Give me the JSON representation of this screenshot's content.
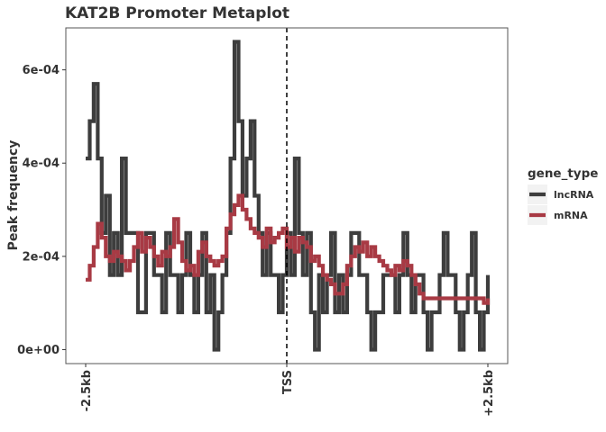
{
  "chart_data": {
    "type": "line",
    "step": true,
    "title": "KAT2B Promoter Metaplot",
    "xlabel": "",
    "ylabel": "Peak frequency",
    "xlim": [
      -2500,
      2500
    ],
    "x_ticks": [
      {
        "value": -2500,
        "label": "-2.5kb"
      },
      {
        "value": 0,
        "label": "TSS"
      },
      {
        "value": 2500,
        "label": "+2.5kb"
      }
    ],
    "ylim": [
      -3e-05,
      0.00069
    ],
    "y_ticks": [
      {
        "value": 0,
        "label": "0e+00"
      },
      {
        "value": 0.0002,
        "label": "2e-04"
      },
      {
        "value": 0.0004,
        "label": "4e-04"
      },
      {
        "value": 0.0006,
        "label": "6e-04"
      }
    ],
    "grid": false,
    "vline": {
      "x": 0,
      "style": "dashed"
    },
    "legend": {
      "title": "gene_type",
      "position": "right"
    },
    "series": [
      {
        "name": "lncRNA",
        "color": "#3d3d3d",
        "x": [
          -2500,
          -2450,
          -2400,
          -2350,
          -2300,
          -2250,
          -2200,
          -2150,
          -2100,
          -2050,
          -2000,
          -1950,
          -1900,
          -1850,
          -1800,
          -1750,
          -1700,
          -1650,
          -1600,
          -1550,
          -1500,
          -1450,
          -1400,
          -1350,
          -1300,
          -1250,
          -1200,
          -1150,
          -1100,
          -1050,
          -1000,
          -950,
          -900,
          -850,
          -800,
          -750,
          -700,
          -650,
          -600,
          -550,
          -500,
          -450,
          -400,
          -350,
          -300,
          -250,
          -200,
          -150,
          -100,
          -50,
          0,
          50,
          100,
          150,
          200,
          250,
          300,
          350,
          400,
          450,
          500,
          550,
          600,
          650,
          700,
          750,
          800,
          850,
          900,
          950,
          1000,
          1050,
          1100,
          1150,
          1200,
          1250,
          1300,
          1350,
          1400,
          1450,
          1500,
          1550,
          1600,
          1650,
          1700,
          1750,
          1800,
          1850,
          1900,
          1950,
          2000,
          2050,
          2100,
          2150,
          2200,
          2250,
          2300,
          2350,
          2400,
          2450,
          2500
        ],
        "values": [
          0.00041,
          0.00049,
          0.00057,
          0.00041,
          0.00025,
          0.00033,
          0.00016,
          0.00025,
          0.00016,
          0.00041,
          0.00025,
          0.00025,
          0.00025,
          8e-05,
          8e-05,
          0.00025,
          0.00025,
          0.00016,
          0.00016,
          8e-05,
          0.00025,
          0.00016,
          0.00016,
          8e-05,
          0.00016,
          0.00025,
          0.00016,
          8e-05,
          0.00016,
          0.00025,
          8e-05,
          0.00016,
          0.0,
          8e-05,
          0.00016,
          0.00025,
          0.00041,
          0.00066,
          0.00049,
          0.00033,
          0.00041,
          0.00049,
          0.00033,
          0.00025,
          0.00016,
          0.00025,
          0.00016,
          0.00016,
          8e-05,
          0.00016,
          0.00025,
          0.00016,
          0.00041,
          0.00025,
          0.00016,
          0.00025,
          8e-05,
          0.0,
          0.00016,
          8e-05,
          0.00016,
          0.00025,
          8e-05,
          0.00016,
          8e-05,
          0.00016,
          0.00025,
          0.00025,
          0.00016,
          0.00016,
          8e-05,
          0.0,
          8e-05,
          8e-05,
          0.00016,
          0.00016,
          0.00016,
          8e-05,
          0.00016,
          0.00025,
          0.00016,
          8e-05,
          0.00016,
          0.00016,
          8e-05,
          0.0,
          8e-05,
          8e-05,
          0.00016,
          0.00025,
          0.00016,
          0.00016,
          8e-05,
          0.0,
          8e-05,
          0.00016,
          0.00025,
          8e-05,
          0.0,
          8e-05,
          0.00016
        ]
      },
      {
        "name": "mRNA",
        "color": "#a83a44",
        "x": [
          -2500,
          -2450,
          -2400,
          -2350,
          -2300,
          -2250,
          -2200,
          -2150,
          -2100,
          -2050,
          -2000,
          -1950,
          -1900,
          -1850,
          -1800,
          -1750,
          -1700,
          -1650,
          -1600,
          -1550,
          -1500,
          -1450,
          -1400,
          -1350,
          -1300,
          -1250,
          -1200,
          -1150,
          -1100,
          -1050,
          -1000,
          -950,
          -900,
          -850,
          -800,
          -750,
          -700,
          -650,
          -600,
          -550,
          -500,
          -450,
          -400,
          -350,
          -300,
          -250,
          -200,
          -150,
          -100,
          -50,
          0,
          50,
          100,
          150,
          200,
          250,
          300,
          350,
          400,
          450,
          500,
          550,
          600,
          650,
          700,
          750,
          800,
          850,
          900,
          950,
          1000,
          1050,
          1100,
          1150,
          1200,
          1250,
          1300,
          1350,
          1400,
          1450,
          1500,
          1550,
          1600,
          1650,
          1700,
          1750,
          1800,
          1850,
          1900,
          1950,
          2000,
          2050,
          2100,
          2150,
          2200,
          2250,
          2300,
          2350,
          2400,
          2450,
          2500
        ],
        "values": [
          0.00015,
          0.00018,
          0.00022,
          0.00027,
          0.00024,
          0.0002,
          0.00019,
          0.00021,
          0.0002,
          0.00019,
          0.00017,
          0.00019,
          0.00022,
          0.00025,
          0.00021,
          0.00024,
          0.00022,
          0.0002,
          0.00018,
          0.00021,
          0.0002,
          0.00022,
          0.00028,
          0.00023,
          0.00019,
          0.00017,
          0.00018,
          0.00016,
          0.00021,
          0.00023,
          0.0002,
          0.00019,
          0.00018,
          0.00019,
          0.0002,
          0.00026,
          0.00029,
          0.00031,
          0.00033,
          0.0003,
          0.00028,
          0.00026,
          0.00025,
          0.00024,
          0.00022,
          0.00026,
          0.00023,
          0.00024,
          0.00025,
          0.00026,
          0.00022,
          0.00024,
          0.00021,
          0.00024,
          0.00023,
          0.00022,
          0.00019,
          0.0002,
          0.00018,
          0.00016,
          0.00015,
          0.00014,
          0.00012,
          0.00012,
          0.00014,
          0.00018,
          0.0002,
          0.00022,
          0.00021,
          0.00023,
          0.0002,
          0.00022,
          0.0002,
          0.00019,
          0.00018,
          0.00017,
          0.00016,
          0.00018,
          0.00017,
          0.00019,
          0.00018,
          0.00016,
          0.00014,
          0.00012,
          0.00011,
          0.00011,
          0.00011,
          0.00011,
          0.00011,
          0.00011,
          0.00011,
          0.00011,
          0.00011,
          0.00011,
          0.00011,
          0.00011,
          0.00011,
          0.00011,
          0.00011,
          0.0001,
          0.00011
        ]
      }
    ]
  }
}
